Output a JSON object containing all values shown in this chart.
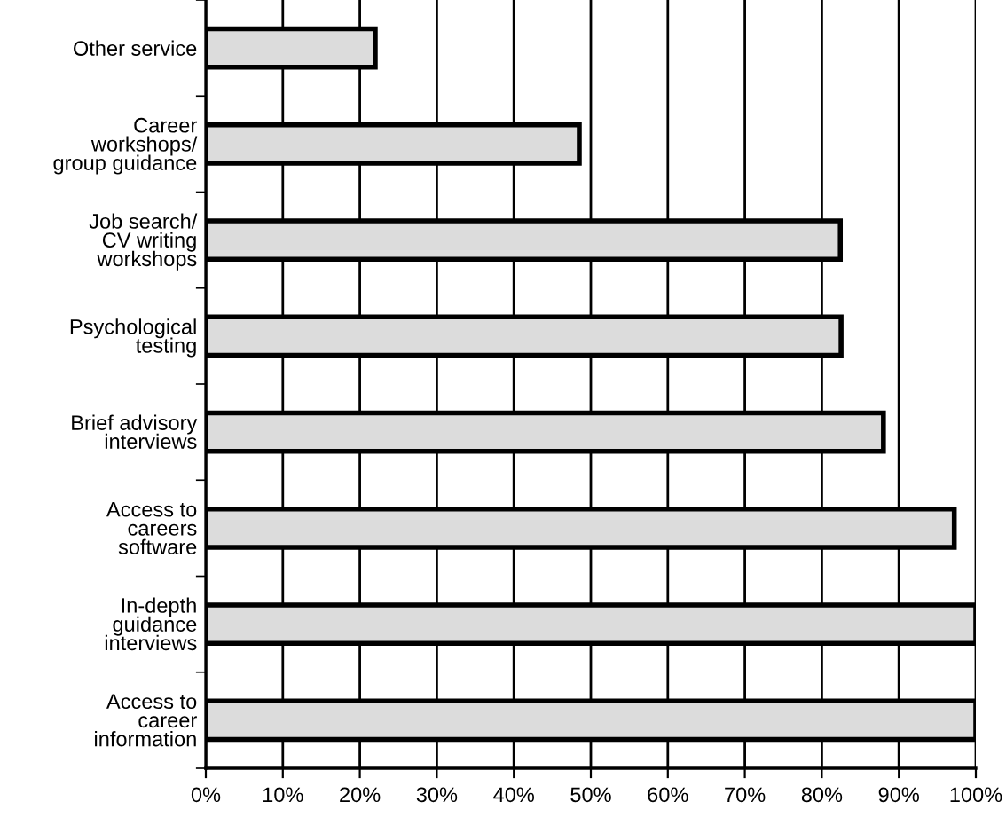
{
  "chart_data": {
    "type": "bar",
    "orientation": "horizontal",
    "categories": [
      "Other service",
      "Career\nworkshops/\ngroup guidance",
      "Job search/\nCV writing\nworkshops",
      "Psychological\ntesting",
      "Brief advisory\ninterviews",
      "Access to\ncareers\nsoftware",
      "In-depth\nguidance\ninterviews",
      "Access to\ncareer\ninformation"
    ],
    "values": [
      22,
      48.5,
      82.4,
      82.5,
      88,
      97.2,
      100,
      100
    ],
    "color": "#dcdcdc",
    "xlim": [
      0,
      100
    ],
    "xticks": [
      {
        "value": 0,
        "label": "0%"
      },
      {
        "value": 10,
        "label": "10%"
      },
      {
        "value": 20,
        "label": "20%"
      },
      {
        "value": 30,
        "label": "30%"
      },
      {
        "value": 40,
        "label": "40%"
      },
      {
        "value": 50,
        "label": "50%"
      },
      {
        "value": 60,
        "label": "60%"
      },
      {
        "value": 70,
        "label": "70%"
      },
      {
        "value": 80,
        "label": "80%"
      },
      {
        "value": 90,
        "label": "90%"
      },
      {
        "value": 100,
        "label": "100%"
      }
    ],
    "grid": "x"
  }
}
